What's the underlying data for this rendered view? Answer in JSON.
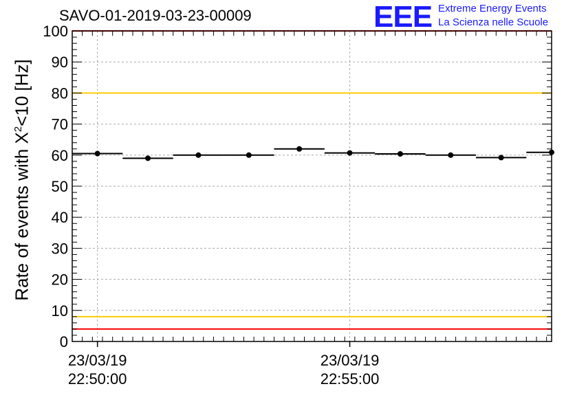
{
  "title": "SAVO-01-2019-03-23-00009",
  "logo": {
    "letters": "EEE",
    "line1": "Extreme Energy Events",
    "line2": "La Scienza nelle Scuole",
    "color": "#1a1aff"
  },
  "chart_data": {
    "type": "scatter",
    "title": "SAVO-01-2019-03-23-00009",
    "ylabel_prefix": "Rate of events with X",
    "ylabel_sup": "2",
    "ylabel_suffix": "<10 [Hz]",
    "ylim": [
      0,
      100
    ],
    "yticks": [
      "0",
      "10",
      "20",
      "30",
      "40",
      "50",
      "60",
      "70",
      "80",
      "90",
      "100"
    ],
    "xlim": [
      -30,
      540
    ],
    "xlabels": [
      {
        "x": 0,
        "date": "23/03/19",
        "time": "22:50:00"
      },
      {
        "x": 300,
        "date": "23/03/19",
        "time": "22:55:00"
      }
    ],
    "points": [
      {
        "x": 0,
        "y": 60.5,
        "err": 0.6
      },
      {
        "x": 60,
        "y": 59.0,
        "err": 0.6
      },
      {
        "x": 120,
        "y": 60.0,
        "err": 0.6
      },
      {
        "x": 180,
        "y": 60.0,
        "err": 0.6
      },
      {
        "x": 240,
        "y": 62.0,
        "err": 0.6
      },
      {
        "x": 300,
        "y": 60.7,
        "err": 0.6
      },
      {
        "x": 360,
        "y": 60.4,
        "err": 0.6
      },
      {
        "x": 420,
        "y": 60.0,
        "err": 0.6
      },
      {
        "x": 480,
        "y": 59.2,
        "err": 0.6
      },
      {
        "x": 540,
        "y": 60.9,
        "err": 0.6
      }
    ],
    "bin_halfwidth": 30,
    "reference_lines": [
      {
        "y": 100,
        "color": "#ff0000"
      },
      {
        "y": 80,
        "color": "#ffcc00"
      },
      {
        "y": 8,
        "color": "#ffcc00"
      },
      {
        "y": 4,
        "color": "#ff0000"
      }
    ],
    "grid": true
  }
}
